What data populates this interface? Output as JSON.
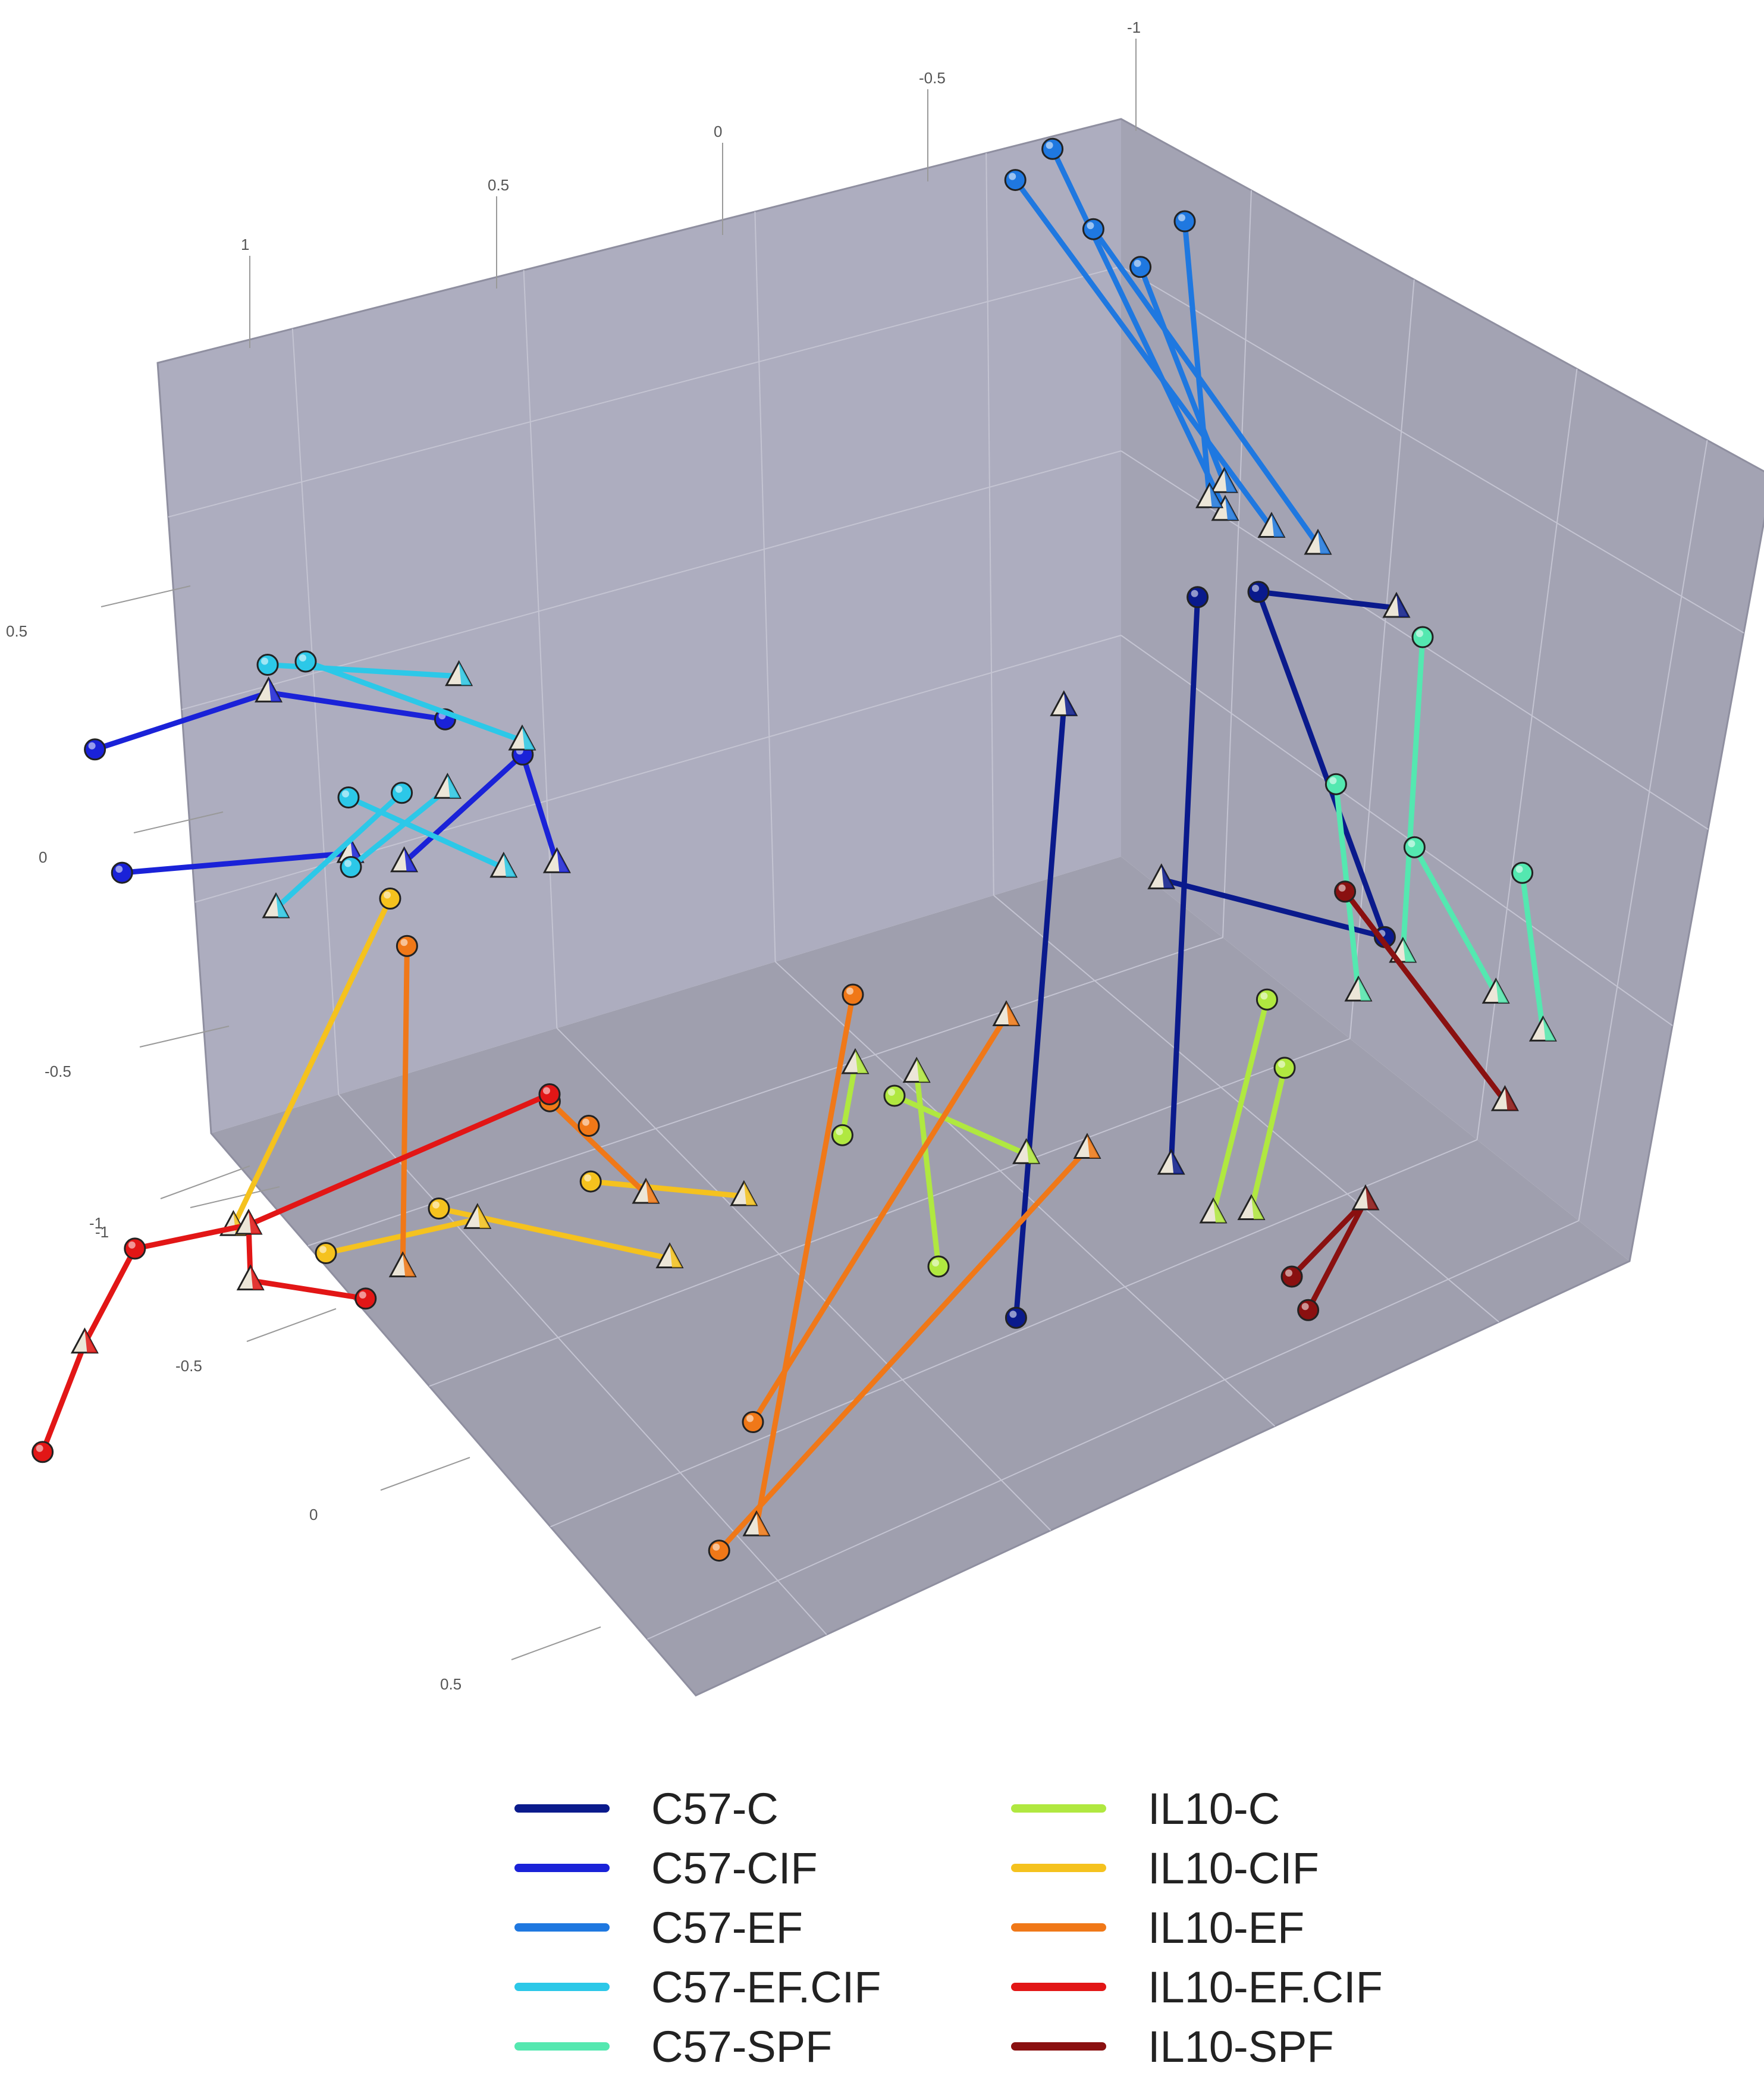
{
  "chart_data": {
    "type": "scatter",
    "title": "",
    "axes": {
      "x": {
        "ticks": [
          "-1",
          "-0.5",
          "0",
          "0.5",
          "1"
        ]
      },
      "y": {
        "ticks": [
          "-1",
          "-0.5",
          "0",
          "0.5"
        ]
      },
      "z": {
        "ticks": [
          "0.5",
          "0",
          "-0.5",
          "-1"
        ]
      }
    },
    "marker_note": "spheres and pyramids",
    "series": [
      {
        "name": "C57-C",
        "color": "#0a1a8c",
        "points": [
          [
            0.62,
            0.05,
            -0.55
          ],
          [
            0.62,
            0.14,
            0.32
          ],
          [
            0.62,
            0.32,
            0.46
          ],
          [
            0.62,
            0.26,
            -0.35
          ],
          [
            0.62,
            0.4,
            0.46
          ],
          [
            0.62,
            0.58,
            0.42
          ],
          [
            0.62,
            0.55,
            -0.05
          ],
          [
            0.62,
            0.26,
            0.06
          ]
        ],
        "segments": [
          [
            0,
            1
          ],
          [
            2,
            3
          ],
          [
            4,
            5
          ],
          [
            6,
            7
          ],
          [
            4,
            6
          ]
        ]
      },
      {
        "name": "C57-CIF",
        "color": "#1a22d8",
        "points": [
          [
            -0.25,
            -0.78,
            0.3
          ],
          [
            -0.25,
            -0.55,
            0.36
          ],
          [
            -0.25,
            -0.75,
            0.12
          ],
          [
            -0.25,
            -0.45,
            0.12
          ],
          [
            -0.25,
            -0.32,
            0.3
          ],
          [
            -0.25,
            -0.38,
            0.1
          ],
          [
            -0.25,
            -0.22,
            0.24
          ],
          [
            -0.25,
            -0.18,
            0.08
          ]
        ],
        "segments": [
          [
            0,
            1
          ],
          [
            2,
            3
          ],
          [
            1,
            4
          ],
          [
            5,
            6
          ],
          [
            6,
            7
          ]
        ]
      },
      {
        "name": "C57-EF",
        "color": "#1f78e0",
        "points": [
          [
            0.62,
            0.1,
            1.08
          ],
          [
            0.62,
            0.42,
            0.55
          ],
          [
            0.62,
            0.15,
            1.12
          ],
          [
            0.62,
            0.36,
            0.58
          ],
          [
            0.62,
            0.2,
            1.0
          ],
          [
            0.62,
            0.48,
            0.52
          ],
          [
            0.62,
            0.26,
            0.94
          ],
          [
            0.62,
            0.36,
            0.62
          ],
          [
            0.62,
            0.32,
            1.0
          ],
          [
            0.62,
            0.34,
            0.6
          ]
        ],
        "segments": [
          [
            0,
            1
          ],
          [
            2,
            3
          ],
          [
            4,
            5
          ],
          [
            6,
            7
          ],
          [
            8,
            9
          ]
        ]
      },
      {
        "name": "C57-EF.CIF",
        "color": "#2cc8e8",
        "points": [
          [
            -0.25,
            -0.55,
            0.4
          ],
          [
            -0.25,
            -0.3,
            0.36
          ],
          [
            -0.25,
            -0.5,
            0.4
          ],
          [
            -0.25,
            -0.22,
            0.26
          ],
          [
            -0.25,
            -0.45,
            0.2
          ],
          [
            -0.25,
            -0.25,
            0.08
          ],
          [
            -0.25,
            -0.38,
            0.2
          ],
          [
            -0.25,
            -0.55,
            0.05
          ],
          [
            -0.25,
            -0.45,
            0.1
          ],
          [
            -0.25,
            -0.32,
            0.2
          ]
        ],
        "segments": [
          [
            0,
            1
          ],
          [
            2,
            3
          ],
          [
            4,
            5
          ],
          [
            6,
            7
          ],
          [
            8,
            9
          ]
        ]
      },
      {
        "name": "C57-SPF",
        "color": "#54e8b0",
        "points": [
          [
            0.9,
            0.5,
            0.4
          ],
          [
            0.9,
            0.46,
            -0.05
          ],
          [
            0.9,
            0.38,
            0.2
          ],
          [
            0.9,
            0.4,
            -0.1
          ],
          [
            0.9,
            0.62,
            0.05
          ],
          [
            0.9,
            0.64,
            -0.18
          ],
          [
            0.9,
            0.48,
            0.1
          ],
          [
            0.9,
            0.58,
            -0.12
          ]
        ],
        "segments": [
          [
            0,
            1
          ],
          [
            2,
            3
          ],
          [
            4,
            5
          ],
          [
            6,
            7
          ]
        ]
      },
      {
        "name": "IL10-C",
        "color": "#b0e840",
        "points": [
          [
            0.25,
            0.05,
            -0.25
          ],
          [
            0.25,
            0.22,
            -0.35
          ],
          [
            0.25,
            -0.02,
            -0.3
          ],
          [
            0.25,
            0.0,
            -0.2
          ],
          [
            0.25,
            0.1,
            -0.5
          ],
          [
            0.25,
            0.08,
            -0.22
          ],
          [
            0.9,
            0.28,
            -0.1
          ],
          [
            0.9,
            0.2,
            -0.4
          ],
          [
            0.9,
            0.3,
            -0.2
          ],
          [
            0.9,
            0.25,
            -0.4
          ]
        ],
        "segments": [
          [
            0,
            1
          ],
          [
            2,
            3
          ],
          [
            4,
            5
          ],
          [
            6,
            7
          ],
          [
            8,
            9
          ]
        ]
      },
      {
        "name": "IL10-CIF",
        "color": "#f5c21e",
        "points": [
          [
            -0.25,
            -0.4,
            0.05
          ],
          [
            -0.25,
            -0.62,
            -0.4
          ],
          [
            -0.25,
            -0.35,
            -0.4
          ],
          [
            -0.25,
            -0.05,
            -0.5
          ],
          [
            -0.25,
            -0.15,
            -0.38
          ],
          [
            -0.25,
            0.05,
            -0.42
          ],
          [
            -0.25,
            -0.5,
            -0.45
          ],
          [
            -0.25,
            -0.3,
            -0.42
          ]
        ],
        "segments": [
          [
            0,
            1
          ],
          [
            2,
            3
          ],
          [
            4,
            5
          ],
          [
            6,
            7
          ]
        ]
      },
      {
        "name": "IL10-EF",
        "color": "#f07818",
        "points": [
          [
            -0.25,
            -0.38,
            -0.02
          ],
          [
            -0.25,
            -0.4,
            -0.48
          ],
          [
            0.25,
            0.0,
            -0.1
          ],
          [
            0.25,
            -0.15,
            -0.85
          ],
          [
            0.25,
            -0.2,
            -0.88
          ],
          [
            0.25,
            0.3,
            -0.35
          ],
          [
            0.25,
            -0.15,
            -0.7
          ],
          [
            0.25,
            0.2,
            -0.15
          ],
          [
            -0.25,
            -0.2,
            -0.26
          ],
          [
            0.25,
            -0.28,
            -0.36
          ],
          [
            -0.25,
            -0.15,
            -0.3
          ]
        ],
        "segments": [
          [
            0,
            1
          ],
          [
            2,
            3
          ],
          [
            4,
            5
          ],
          [
            6,
            7
          ],
          [
            8,
            9
          ]
        ]
      },
      {
        "name": "IL10-EF.CIF",
        "color": "#e21616",
        "points": [
          [
            -0.25,
            -0.2,
            -0.25
          ],
          [
            -0.25,
            -0.6,
            -0.4
          ],
          [
            -0.25,
            -0.75,
            -0.42
          ],
          [
            -0.25,
            -0.82,
            -0.55
          ],
          [
            -0.25,
            -0.88,
            -0.7
          ],
          [
            -0.25,
            -0.6,
            -0.48
          ],
          [
            -0.25,
            -0.45,
            -0.52
          ]
        ],
        "segments": [
          [
            0,
            1
          ],
          [
            1,
            2
          ],
          [
            2,
            3
          ],
          [
            3,
            4
          ],
          [
            1,
            5
          ],
          [
            5,
            6
          ]
        ]
      },
      {
        "name": "IL10-SPF",
        "color": "#8a1010",
        "points": [
          [
            0.62,
            0.5,
            0.02
          ],
          [
            0.62,
            0.7,
            -0.3
          ],
          [
            0.9,
            0.3,
            -0.5
          ],
          [
            0.9,
            0.4,
            -0.4
          ],
          [
            0.9,
            0.32,
            -0.55
          ]
        ],
        "segments": [
          [
            0,
            1
          ],
          [
            2,
            3
          ],
          [
            3,
            4
          ]
        ]
      }
    ]
  }
}
